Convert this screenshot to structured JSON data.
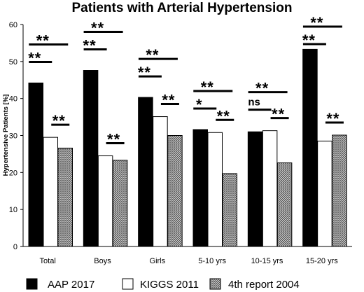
{
  "chart_data": {
    "type": "bar",
    "title": "Patients with Arterial Hypertension",
    "xlabel": "",
    "ylabel": "Hypertensive Patients [%]",
    "ylim": [
      0,
      60
    ],
    "yticks": [
      "0",
      "10",
      "20",
      "30",
      "40",
      "50",
      "60"
    ],
    "grid": false,
    "legend_position": "bottom",
    "categories": [
      "Total",
      "Boys",
      "Girls",
      "5-10 yrs",
      "10-15 yrs",
      "15-20 yrs"
    ],
    "series": [
      {
        "name": "AAP 2017",
        "values": [
          44.2,
          47.6,
          40.3,
          31.6,
          31.0,
          53.3
        ],
        "color": "#000000"
      },
      {
        "name": "KIGGS 2011",
        "values": [
          29.5,
          24.5,
          35.1,
          30.8,
          31.3,
          28.5
        ],
        "color": "#ffffff"
      },
      {
        "name": "4th report 2004",
        "values": [
          26.6,
          23.3,
          30.0,
          19.7,
          22.6,
          30.1
        ],
        "color": "crosshatch"
      }
    ],
    "annotations": [
      {
        "category": "Total",
        "text": "**",
        "comparison": "AAP 2017 vs 4th report 2004"
      },
      {
        "category": "Total",
        "text": "**",
        "comparison": "AAP 2017 vs KIGGS 2011"
      },
      {
        "category": "Total",
        "text": "**",
        "comparison": "KIGGS 2011 vs 4th report 2004"
      },
      {
        "category": "Boys",
        "text": "**",
        "comparison": "AAP 2017 vs 4th report 2004"
      },
      {
        "category": "Boys",
        "text": "**",
        "comparison": "AAP 2017 vs KIGGS 2011"
      },
      {
        "category": "Boys",
        "text": "**",
        "comparison": "KIGGS 2011 vs 4th report 2004"
      },
      {
        "category": "Girls",
        "text": "**",
        "comparison": "AAP 2017 vs 4th report 2004"
      },
      {
        "category": "Girls",
        "text": "**",
        "comparison": "AAP 2017 vs KIGGS 2011"
      },
      {
        "category": "Girls",
        "text": "**",
        "comparison": "KIGGS 2011 vs 4th report 2004"
      },
      {
        "category": "5-10 yrs",
        "text": "**",
        "comparison": "AAP 2017 vs 4th report 2004"
      },
      {
        "category": "5-10 yrs",
        "text": "*",
        "comparison": "AAP 2017 vs KIGGS 2011"
      },
      {
        "category": "5-10 yrs",
        "text": "**",
        "comparison": "KIGGS 2011 vs 4th report 2004"
      },
      {
        "category": "10-15 yrs",
        "text": "**",
        "comparison": "AAP 2017 vs 4th report 2004"
      },
      {
        "category": "10-15 yrs",
        "text": "ns",
        "comparison": "AAP 2017 vs KIGGS 2011"
      },
      {
        "category": "10-15 yrs",
        "text": "**",
        "comparison": "KIGGS 2011 vs 4th report 2004"
      },
      {
        "category": "15-20 yrs",
        "text": "**",
        "comparison": "AAP 2017 vs 4th report 2004"
      },
      {
        "category": "15-20 yrs",
        "text": "**",
        "comparison": "AAP 2017 vs KIGGS 2011"
      },
      {
        "category": "15-20 yrs",
        "text": "**",
        "comparison": "KIGGS 2011 vs 4th report 2004"
      }
    ]
  }
}
